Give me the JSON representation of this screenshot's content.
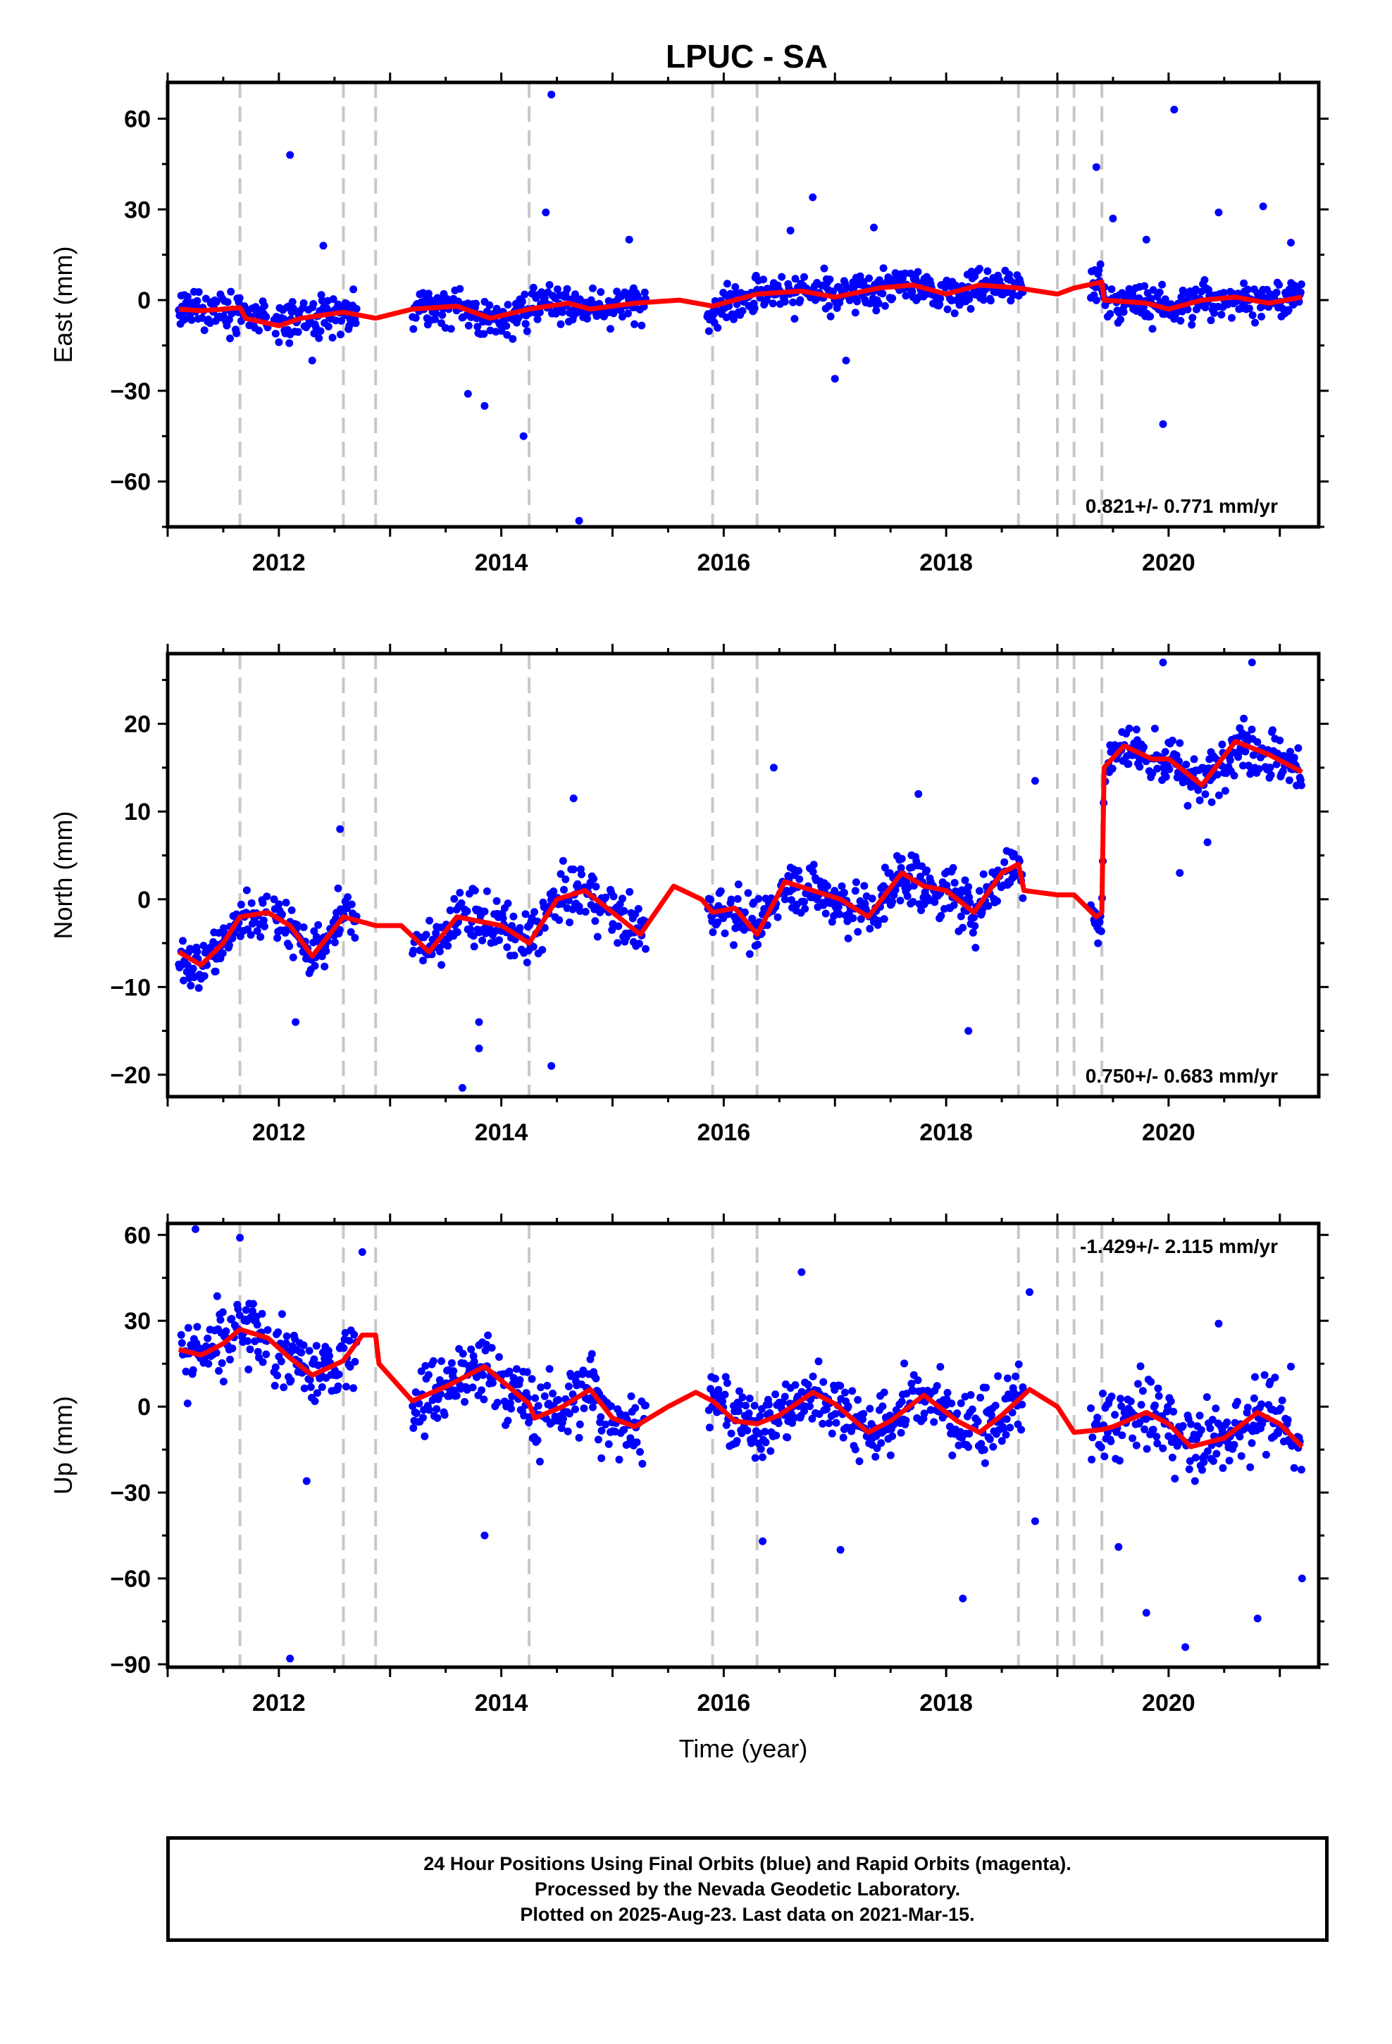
{
  "colors": {
    "data": "#0000ff",
    "model": "#ff0000",
    "breaks": "#c8c8c8",
    "axis": "#000000"
  },
  "chart_data": [
    {
      "type": "scatter",
      "title": "LPUC - SA",
      "ylabel": "East (mm)",
      "xlabel": "",
      "xlim": [
        2011.0,
        2021.35
      ],
      "ylim": [
        -75,
        72
      ],
      "xticks": [
        2012,
        2014,
        2016,
        2018,
        2020
      ],
      "yticks": [
        60,
        30,
        0,
        -30,
        -60
      ],
      "ytick_labels": [
        "60",
        "30",
        "0",
        "−30",
        "−60"
      ],
      "rate_label": "0.821+/- 0.771 mm/yr",
      "rate_position": "bottom-right",
      "breaks": [
        2011.65,
        2012.58,
        2012.87,
        2014.25,
        2015.9,
        2016.3,
        2018.65,
        2019.0,
        2019.15,
        2019.4
      ],
      "gaps": [
        [
          2011.9,
          2011.95
        ],
        [
          2012.7,
          2013.2
        ],
        [
          2015.3,
          2015.85
        ],
        [
          2018.7,
          2019.3
        ]
      ],
      "scatter_sd": 4.5,
      "outliers": [
        [
          2012.1,
          48
        ],
        [
          2014.45,
          68
        ],
        [
          2014.4,
          29
        ],
        [
          2013.7,
          -31
        ],
        [
          2013.85,
          -35
        ],
        [
          2014.2,
          -45
        ],
        [
          2014.7,
          -73
        ],
        [
          2015.15,
          20
        ],
        [
          2016.6,
          23
        ],
        [
          2016.8,
          34
        ],
        [
          2017.0,
          -26
        ],
        [
          2017.1,
          -20
        ],
        [
          2017.35,
          24
        ],
        [
          2019.35,
          44
        ],
        [
          2019.5,
          27
        ],
        [
          2019.8,
          20
        ],
        [
          2019.95,
          -41
        ],
        [
          2020.05,
          63
        ],
        [
          2020.45,
          29
        ],
        [
          2020.85,
          31
        ],
        [
          2021.1,
          19
        ],
        [
          2012.4,
          18
        ],
        [
          2012.3,
          -20
        ]
      ],
      "model": [
        [
          2011.1,
          -3
        ],
        [
          2011.3,
          -3.5
        ],
        [
          2011.5,
          -3
        ],
        [
          2011.65,
          -2.5
        ],
        [
          2011.7,
          -6
        ],
        [
          2012.0,
          -8.5
        ],
        [
          2012.2,
          -6
        ],
        [
          2012.58,
          -4
        ],
        [
          2012.87,
          -6
        ],
        [
          2013.2,
          -3
        ],
        [
          2013.6,
          -2
        ],
        [
          2013.9,
          -6
        ],
        [
          2014.25,
          -3
        ],
        [
          2014.6,
          -1
        ],
        [
          2014.8,
          -3
        ],
        [
          2015.2,
          -1
        ],
        [
          2015.6,
          0
        ],
        [
          2015.9,
          -2
        ],
        [
          2016.3,
          2
        ],
        [
          2016.7,
          3
        ],
        [
          2017.0,
          1
        ],
        [
          2017.4,
          4
        ],
        [
          2017.7,
          5
        ],
        [
          2018.0,
          2
        ],
        [
          2018.3,
          5
        ],
        [
          2018.65,
          4
        ],
        [
          2019.0,
          2
        ],
        [
          2019.15,
          4
        ],
        [
          2019.4,
          6
        ],
        [
          2019.42,
          0
        ],
        [
          2019.8,
          -1
        ],
        [
          2020.0,
          -3
        ],
        [
          2020.3,
          0
        ],
        [
          2020.6,
          1
        ],
        [
          2020.9,
          -1
        ],
        [
          2021.2,
          1
        ]
      ]
    },
    {
      "type": "scatter",
      "title": "",
      "ylabel": "North (mm)",
      "xlabel": "",
      "xlim": [
        2011.0,
        2021.35
      ],
      "ylim": [
        -22.5,
        28
      ],
      "xticks": [
        2012,
        2014,
        2016,
        2018,
        2020
      ],
      "yticks": [
        20,
        10,
        0,
        -10,
        -20
      ],
      "ytick_labels": [
        "20",
        "10",
        "0",
        "−10",
        "−20"
      ],
      "rate_label": "0.750+/- 0.683 mm/yr",
      "rate_position": "bottom-right",
      "breaks": [
        2011.65,
        2012.58,
        2012.87,
        2014.25,
        2015.9,
        2016.3,
        2018.65,
        2019.0,
        2019.15,
        2019.4
      ],
      "gaps": [
        [
          2011.9,
          2011.95
        ],
        [
          2012.7,
          2013.2
        ],
        [
          2015.3,
          2015.85
        ],
        [
          2018.7,
          2019.3
        ]
      ],
      "scatter_sd": 2.2,
      "outliers": [
        [
          2013.65,
          -21.5
        ],
        [
          2013.8,
          -17
        ],
        [
          2014.45,
          -19
        ],
        [
          2014.65,
          11.5
        ],
        [
          2016.45,
          15
        ],
        [
          2017.75,
          12
        ],
        [
          2018.2,
          -15
        ],
        [
          2018.8,
          13.5
        ],
        [
          2019.95,
          27
        ],
        [
          2020.1,
          3
        ],
        [
          2020.35,
          6.5
        ],
        [
          2020.75,
          27
        ],
        [
          2012.55,
          8
        ],
        [
          2012.15,
          -14
        ],
        [
          2013.8,
          -14
        ]
      ],
      "model": [
        [
          2011.1,
          -6
        ],
        [
          2011.3,
          -7.5
        ],
        [
          2011.5,
          -5
        ],
        [
          2011.65,
          -2
        ],
        [
          2011.9,
          -1.5
        ],
        [
          2012.1,
          -3
        ],
        [
          2012.3,
          -6.5
        ],
        [
          2012.58,
          -2
        ],
        [
          2012.87,
          -3
        ],
        [
          2013.1,
          -3
        ],
        [
          2013.35,
          -6
        ],
        [
          2013.6,
          -2
        ],
        [
          2013.8,
          -2.5
        ],
        [
          2014.0,
          -3
        ],
        [
          2014.25,
          -5
        ],
        [
          2014.5,
          0
        ],
        [
          2014.75,
          1
        ],
        [
          2015.0,
          -1.5
        ],
        [
          2015.25,
          -4
        ],
        [
          2015.55,
          1.5
        ],
        [
          2015.8,
          0
        ],
        [
          2015.9,
          -1.5
        ],
        [
          2016.1,
          -1
        ],
        [
          2016.3,
          -4
        ],
        [
          2016.55,
          2
        ],
        [
          2016.8,
          1
        ],
        [
          2017.05,
          0
        ],
        [
          2017.3,
          -2
        ],
        [
          2017.6,
          3
        ],
        [
          2017.8,
          1.5
        ],
        [
          2018.0,
          1
        ],
        [
          2018.25,
          -1.5
        ],
        [
          2018.5,
          3
        ],
        [
          2018.65,
          4
        ],
        [
          2018.7,
          1
        ],
        [
          2019.0,
          0.5
        ],
        [
          2019.15,
          0.5
        ],
        [
          2019.35,
          -2
        ],
        [
          2019.4,
          -1.5
        ],
        [
          2019.42,
          15
        ],
        [
          2019.6,
          17.5
        ],
        [
          2019.85,
          16
        ],
        [
          2020.0,
          16
        ],
        [
          2020.3,
          13
        ],
        [
          2020.6,
          18
        ],
        [
          2020.9,
          16.5
        ],
        [
          2021.2,
          14.5
        ]
      ]
    },
    {
      "type": "scatter",
      "title": "",
      "ylabel": "Up (mm)",
      "xlabel": "Time (year)",
      "xlim": [
        2011.0,
        2021.35
      ],
      "ylim": [
        -91,
        64
      ],
      "xticks": [
        2012,
        2014,
        2016,
        2018,
        2020
      ],
      "yticks": [
        60,
        30,
        0,
        -30,
        -60,
        -90
      ],
      "ytick_labels": [
        "60",
        "30",
        "0",
        "−30",
        "−60",
        "−90"
      ],
      "rate_label": "-1.429+/- 2.115 mm/yr",
      "rate_position": "top-right",
      "breaks": [
        2011.65,
        2012.58,
        2012.87,
        2014.25,
        2015.9,
        2016.3,
        2018.65,
        2019.0,
        2019.15,
        2019.4
      ],
      "gaps": [
        [
          2011.9,
          2011.95
        ],
        [
          2012.7,
          2013.2
        ],
        [
          2015.3,
          2015.85
        ],
        [
          2018.7,
          2019.3
        ]
      ],
      "scatter_sd": 9,
      "outliers": [
        [
          2011.25,
          62
        ],
        [
          2011.65,
          59
        ],
        [
          2012.1,
          -88
        ],
        [
          2012.75,
          54
        ],
        [
          2012.25,
          -26
        ],
        [
          2013.85,
          -45
        ],
        [
          2014.9,
          -18
        ],
        [
          2016.35,
          -47
        ],
        [
          2016.7,
          47
        ],
        [
          2017.05,
          -50
        ],
        [
          2018.15,
          -67
        ],
        [
          2018.75,
          40
        ],
        [
          2018.8,
          -40
        ],
        [
          2019.55,
          -49
        ],
        [
          2019.8,
          -72
        ],
        [
          2020.15,
          -84
        ],
        [
          2020.45,
          29
        ],
        [
          2020.8,
          -74
        ],
        [
          2021.2,
          -60
        ],
        [
          2021.1,
          14
        ]
      ],
      "model": [
        [
          2011.1,
          20
        ],
        [
          2011.3,
          18
        ],
        [
          2011.5,
          22
        ],
        [
          2011.65,
          27
        ],
        [
          2011.9,
          24
        ],
        [
          2012.1,
          17
        ],
        [
          2012.3,
          11
        ],
        [
          2012.58,
          16
        ],
        [
          2012.75,
          25
        ],
        [
          2012.87,
          25
        ],
        [
          2012.9,
          15
        ],
        [
          2013.2,
          2
        ],
        [
          2013.5,
          7
        ],
        [
          2013.85,
          14
        ],
        [
          2014.25,
          1
        ],
        [
          2014.3,
          -4
        ],
        [
          2014.55,
          0
        ],
        [
          2014.8,
          6
        ],
        [
          2015.0,
          -4
        ],
        [
          2015.2,
          -7
        ],
        [
          2015.5,
          0
        ],
        [
          2015.75,
          5
        ],
        [
          2015.9,
          2
        ],
        [
          2016.1,
          -5
        ],
        [
          2016.3,
          -6
        ],
        [
          2016.5,
          -3
        ],
        [
          2016.8,
          5
        ],
        [
          2017.0,
          1
        ],
        [
          2017.3,
          -9
        ],
        [
          2017.5,
          -5
        ],
        [
          2017.8,
          4
        ],
        [
          2018.1,
          -5
        ],
        [
          2018.3,
          -9
        ],
        [
          2018.5,
          -3
        ],
        [
          2018.75,
          6
        ],
        [
          2019.0,
          0
        ],
        [
          2019.15,
          -9
        ],
        [
          2019.4,
          -8
        ],
        [
          2019.5,
          -7
        ],
        [
          2019.8,
          -2
        ],
        [
          2020.0,
          -6
        ],
        [
          2020.2,
          -14
        ],
        [
          2020.5,
          -11
        ],
        [
          2020.8,
          -2
        ],
        [
          2021.0,
          -6
        ],
        [
          2021.2,
          -14
        ]
      ]
    }
  ],
  "footer": {
    "line1": "24 Hour Positions Using Final Orbits (blue) and Rapid Orbits (magenta).",
    "line2": "Processed by the Nevada Geodetic Laboratory.",
    "line3": "Plotted on 2025-Aug-23. Last data on 2021-Mar-15."
  }
}
